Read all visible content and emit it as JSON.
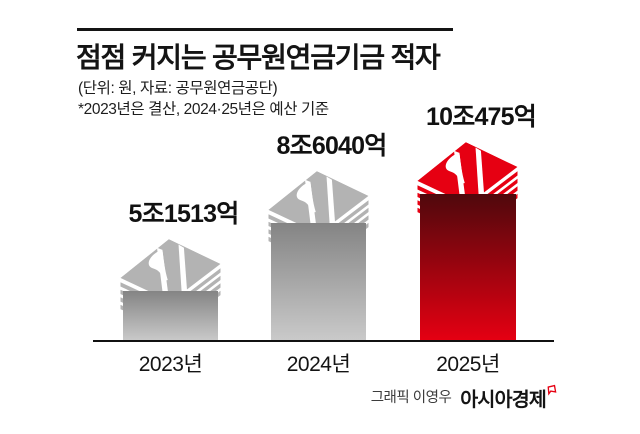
{
  "header": {
    "title": "점점 커지는 공무원연금기금 적자",
    "unit_source": "(단위: 원, 자료: 공무원연금공단)",
    "note": "*2023년은 결산, 2024·25년은 예산 기준"
  },
  "chart_data": {
    "type": "bar",
    "title": "점점 커지는 공무원연금기금 적자",
    "unit": "원",
    "source": "공무원연금공단",
    "note": "*2023년은 결산, 2024·25년은 예산 기준",
    "categories": [
      "2023년",
      "2024년",
      "2025년"
    ],
    "values_trillion_won": [
      5.1513,
      8.604,
      10.0475
    ],
    "value_labels": [
      "5조1513억",
      "8조6040억",
      "10조475억"
    ],
    "bar_themes": [
      "gray",
      "gray",
      "red"
    ],
    "bar_icon": "money-stack",
    "grid": false,
    "legend": "none",
    "ylim_trillion_won": [
      0,
      10.5
    ]
  },
  "footer": {
    "credit": "그래픽 이영우",
    "brand": "아시아경제"
  },
  "colors": {
    "accent_red": "#e60012",
    "red_gradient_top": "#4f080c",
    "gray_money": "#b3b3b3",
    "gray_gradient_top": "#848484",
    "gray_gradient_bottom": "#cacaca",
    "text": "#161616"
  }
}
